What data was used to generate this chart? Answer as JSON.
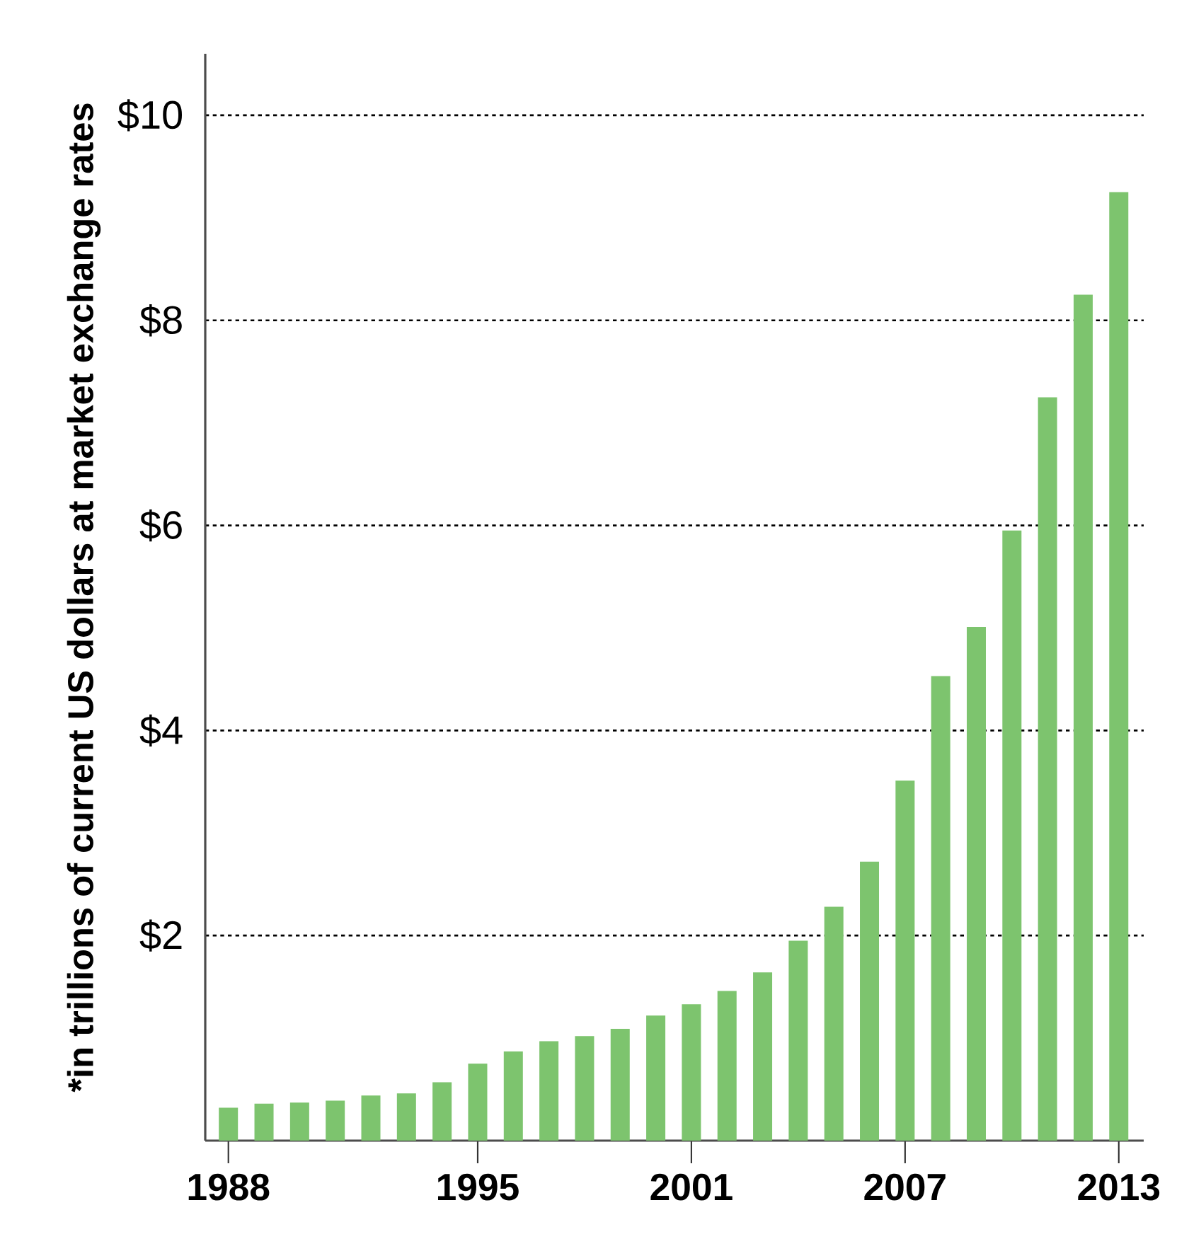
{
  "chart_data": {
    "type": "bar",
    "ylabel": "*in trillions of current US dollars at market exchange rates",
    "categories": [
      "1988",
      null,
      null,
      null,
      null,
      null,
      null,
      "1995",
      null,
      null,
      null,
      null,
      null,
      "2001",
      null,
      null,
      null,
      null,
      null,
      "2007",
      null,
      null,
      null,
      null,
      null,
      "2013"
    ],
    "values": [
      0.32,
      0.36,
      0.37,
      0.39,
      0.44,
      0.46,
      0.57,
      0.75,
      0.87,
      0.97,
      1.02,
      1.09,
      1.22,
      1.33,
      1.46,
      1.64,
      1.95,
      2.28,
      2.72,
      3.51,
      4.53,
      5.01,
      5.95,
      7.25,
      8.25,
      9.25
    ],
    "color": "#7dc46e",
    "ylim": [
      0,
      10.6
    ],
    "yticks": [
      {
        "value": 2,
        "label": "$2"
      },
      {
        "value": 4,
        "label": "$4"
      },
      {
        "value": 6,
        "label": "$6"
      },
      {
        "value": 8,
        "label": "$8"
      },
      {
        "value": 10,
        "label": "$10"
      }
    ],
    "grid": "y"
  }
}
